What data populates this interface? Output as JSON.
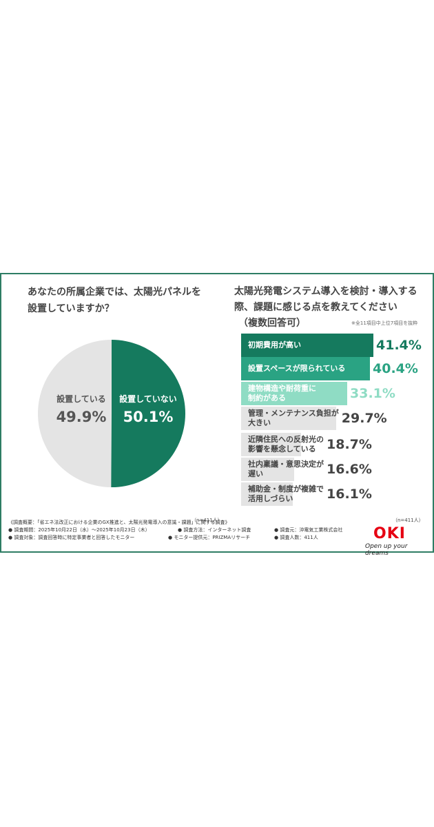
{
  "colors": {
    "border": "#2e7d64",
    "pie_yes": "#e4e4e4",
    "pie_no": "#157a5e",
    "bar_dark": "#157a5e",
    "bar_mid": "#2aa383",
    "bar_light": "#8fdcc4",
    "bar_gray": "#e4e4e4",
    "okired": "#e60012"
  },
  "left_question": [
    "あなたの所属企業では、太陽光パネルを",
    "設置していますか？"
  ],
  "right_question": [
    "太陽光発電システム導入を検討・導入する",
    "際、課題に感じる点を教えてください",
    "（複数回答可）"
  ],
  "bar_note": "※全11項目中上位7項目を抜粋",
  "n_left": "（n=411人）",
  "n_right": "（n=411人）",
  "chart_data": [
    {
      "type": "pie",
      "categories": [
        "設置している",
        "設置していない"
      ],
      "values": [
        49.9,
        50.1
      ],
      "value_labels": [
        "49.9%",
        "50.1%"
      ]
    },
    {
      "type": "bar",
      "orientation": "horizontal",
      "categories": [
        [
          "初期費用が高い"
        ],
        [
          "設置スペースが限られている"
        ],
        [
          "建物構造や耐荷重に",
          "制約がある"
        ],
        [
          "管理・メンテナンス負担が",
          "大きい"
        ],
        [
          "近隣住民への反射光の",
          "影響を懸念している"
        ],
        [
          "社内稟議・意思決定が",
          "遅い"
        ],
        [
          "補助金・制度が複雑で",
          "活用しづらい"
        ]
      ],
      "values": [
        41.4,
        40.4,
        33.1,
        29.7,
        18.7,
        16.6,
        16.1
      ],
      "value_labels": [
        "41.4%",
        "40.4%",
        "33.1%",
        "29.7%",
        "18.7%",
        "16.6%",
        "16.1%"
      ]
    }
  ],
  "footer": {
    "line1": "《調査概要：「省エネ法改正における企業のGX推進と、太陽光発電導入の意識・課題」に関する調査》",
    "period": "● 調査期間：2025年10月22日（水）〜2025年10月23日（木）",
    "method": "● 調査方法：インターネット調査",
    "sponsor": "● 調査元：沖電気工業株式会社",
    "target": "● 調査対象：調査回答時に特定事業者と回答したモニター",
    "provider": "● モニター提供元：PRIZMAリサーチ",
    "count": "● 調査人数：411人"
  },
  "logo": "OKI",
  "tagline": "Open up your dreams"
}
